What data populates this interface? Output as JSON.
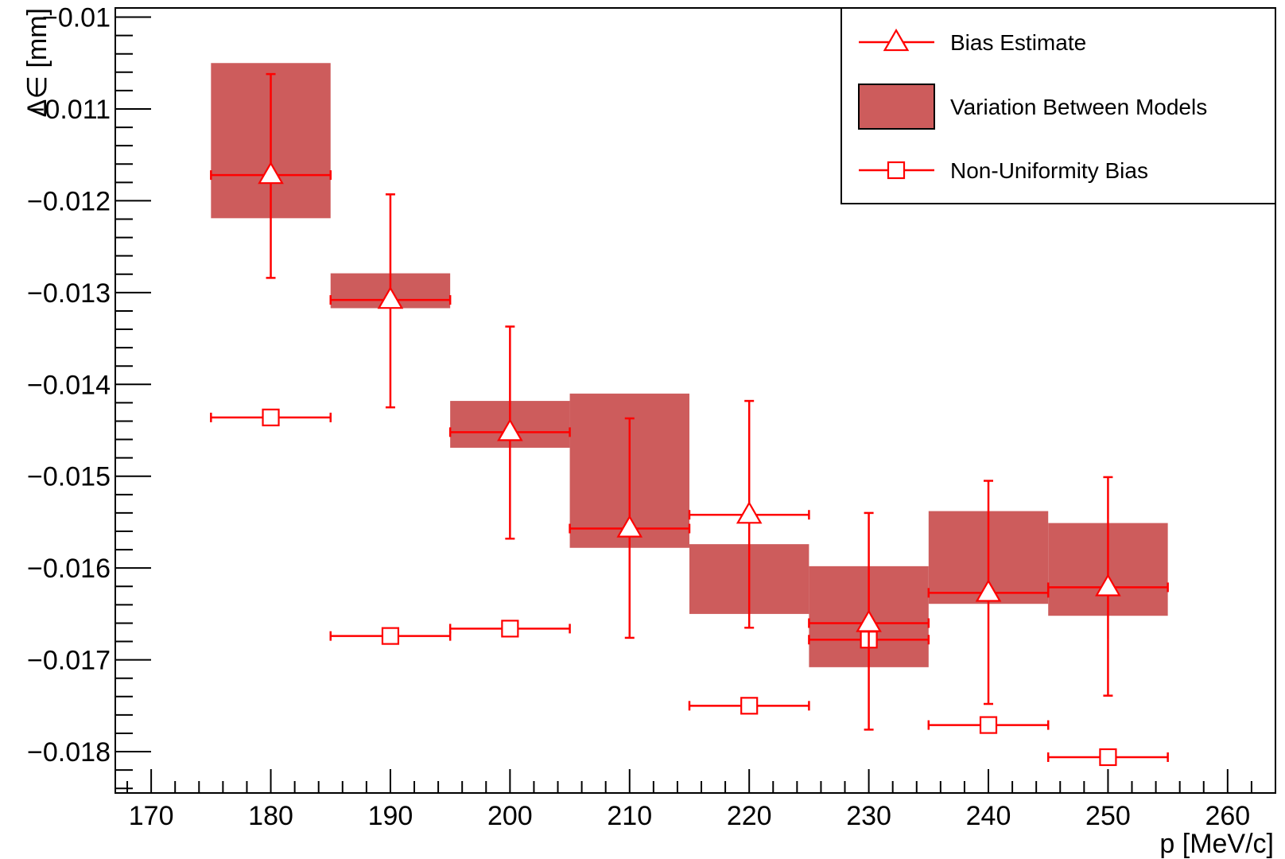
{
  "chart_data": {
    "type": "scatter",
    "xlabel": "p  [MeV/c]",
    "ylabel": "Δ∈ [mm]",
    "xlim": [
      167,
      264
    ],
    "ylim": [
      -0.01845,
      -0.0099
    ],
    "x_ticks": [
      170,
      180,
      190,
      200,
      210,
      220,
      230,
      240,
      250,
      260
    ],
    "x_tick_labels": [
      "170",
      "180",
      "190",
      "200",
      "210",
      "220",
      "230",
      "240",
      "250",
      "260"
    ],
    "y_ticks": [
      -0.01,
      -0.011,
      -0.012,
      -0.013,
      -0.014,
      -0.015,
      -0.016,
      -0.017,
      -0.018
    ],
    "y_tick_labels": [
      "−0.01",
      "−0.011",
      "−0.012",
      "−0.013",
      "−0.014",
      "−0.015",
      "−0.016",
      "−0.017",
      "−0.018"
    ],
    "grid": false,
    "legend_position": "top-right",
    "legend": [
      {
        "label": "Bias Estimate",
        "marker": "open-triangle",
        "color": "#ff0000"
      },
      {
        "label": "Variation Between Models",
        "marker": "filled-box",
        "color": "#cd5c5c"
      },
      {
        "label": "Non-Uniformity Bias",
        "marker": "open-square",
        "color": "#ff0000"
      }
    ],
    "series": [
      {
        "name": "Bias Estimate",
        "color": "#ff0000",
        "marker": "open-triangle",
        "x": [
          180,
          190,
          200,
          210,
          220,
          230,
          240,
          250
        ],
        "x_err": [
          5,
          5,
          5,
          5,
          5,
          5,
          5,
          5
        ],
        "y": [
          -0.01172,
          -0.01308,
          -0.01452,
          -0.01557,
          -0.01542,
          -0.0166,
          -0.01627,
          -0.01621
        ],
        "y_err_high": [
          0.0011,
          0.00115,
          0.00115,
          0.0012,
          0.00124,
          0.0012,
          0.00122,
          0.0012
        ],
        "y_err_low": [
          0.00112,
          0.00117,
          0.00116,
          0.00119,
          0.00123,
          0.00116,
          0.00121,
          0.00118
        ]
      },
      {
        "name": "Variation Between Models",
        "color": "#cd5c5c",
        "marker": "filled-box",
        "x_low": [
          175,
          185,
          195,
          205,
          215,
          225,
          235,
          245
        ],
        "x_high": [
          185,
          195,
          205,
          215,
          225,
          235,
          245,
          255
        ],
        "y_high": [
          -0.0105,
          -0.01279,
          -0.01418,
          -0.0141,
          -0.01574,
          -0.01598,
          -0.01538,
          -0.01551
        ],
        "y_low": [
          -0.01219,
          -0.01317,
          -0.01469,
          -0.01578,
          -0.0165,
          -0.01708,
          -0.01639,
          -0.01652
        ]
      },
      {
        "name": "Non-Uniformity Bias",
        "color": "#ff0000",
        "marker": "open-square",
        "x": [
          180,
          190,
          200,
          220,
          230,
          240,
          250
        ],
        "x_err": [
          5,
          5,
          5,
          5,
          5,
          5,
          5
        ],
        "y": [
          -0.01436,
          -0.01674,
          -0.01666,
          -0.0175,
          -0.01678,
          -0.01771,
          -0.01806
        ]
      }
    ]
  }
}
